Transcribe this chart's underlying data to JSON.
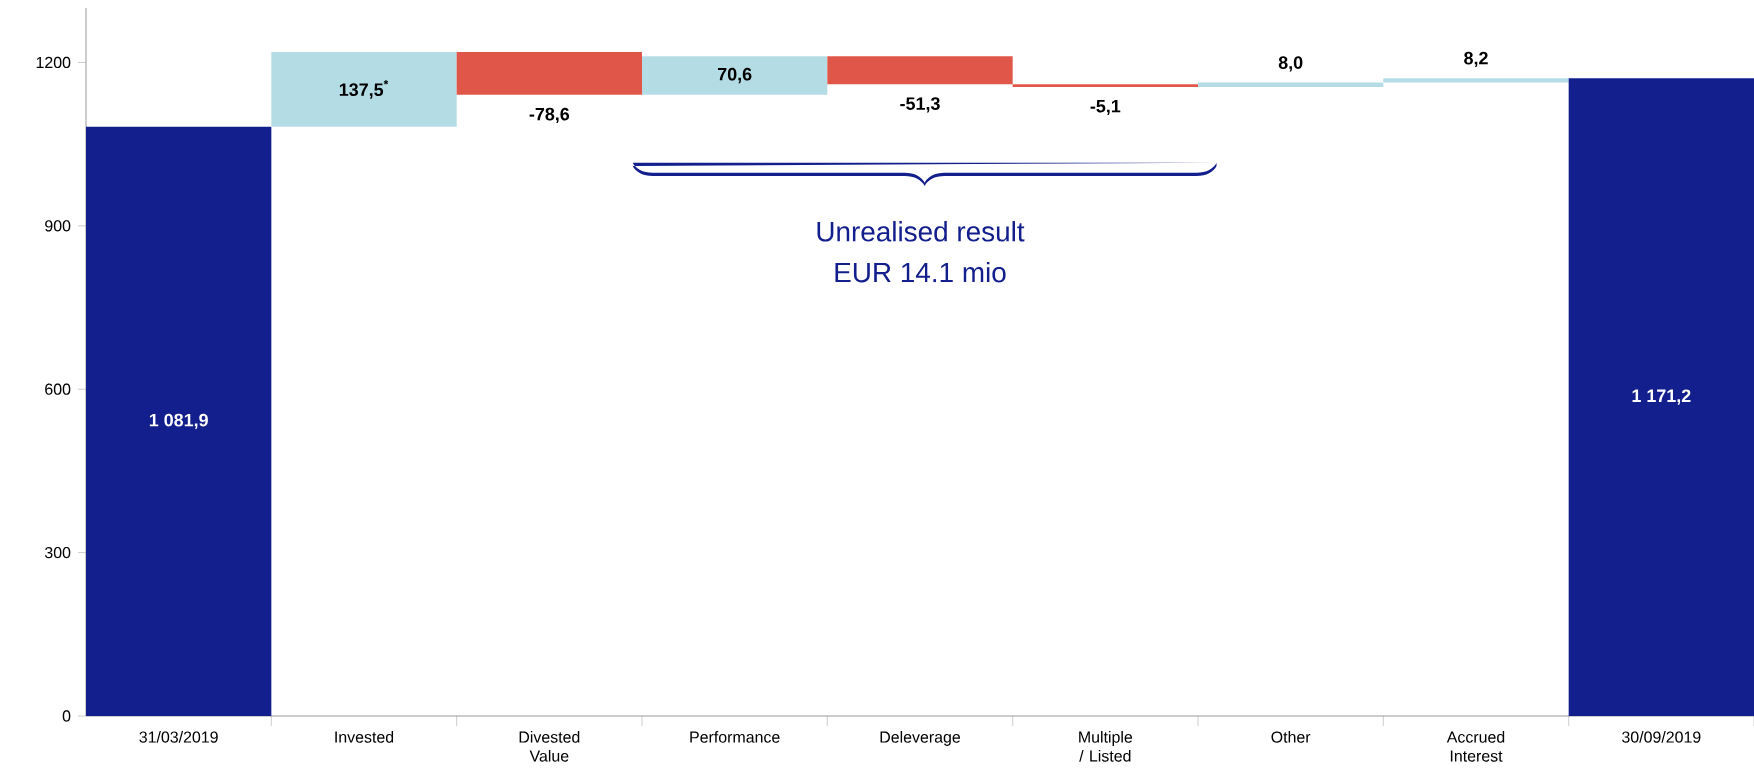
{
  "chart_data": {
    "type": "bar",
    "categories": [
      "31/03/2019",
      "Invested",
      "Divested Value",
      "Performance",
      "Deleverage",
      "Multiple / Listed",
      "Other",
      "Accrued Interest",
      "30/09/2019"
    ],
    "values": [
      1081.9,
      137.5,
      -78.6,
      70.6,
      -51.3,
      -5.1,
      8.0,
      8.2,
      1171.2
    ],
    "base": [
      0,
      1081.9,
      1219.4,
      1140.8,
      1211.4,
      1160.1,
      1155.0,
      1163.0,
      0
    ],
    "colors": [
      "#131f8c",
      "#b4dce4",
      "#e0574a",
      "#b4dce4",
      "#e0574a",
      "#e0574a",
      "#b4dce4",
      "#b4dce4",
      "#131f8c"
    ],
    "value_labels": [
      "1 081,9",
      "137,5$^{*}$",
      "-78,6",
      "70,6",
      "-51,3",
      "-5,1",
      "8,0",
      "8,2",
      "1 171,2"
    ],
    "annotations": [
      "Unrealised result",
      "EUR 14.1 mio"
    ],
    "ylim": [
      0,
      1300
    ],
    "yticks": [
      0,
      300,
      600,
      900,
      1200
    ]
  }
}
